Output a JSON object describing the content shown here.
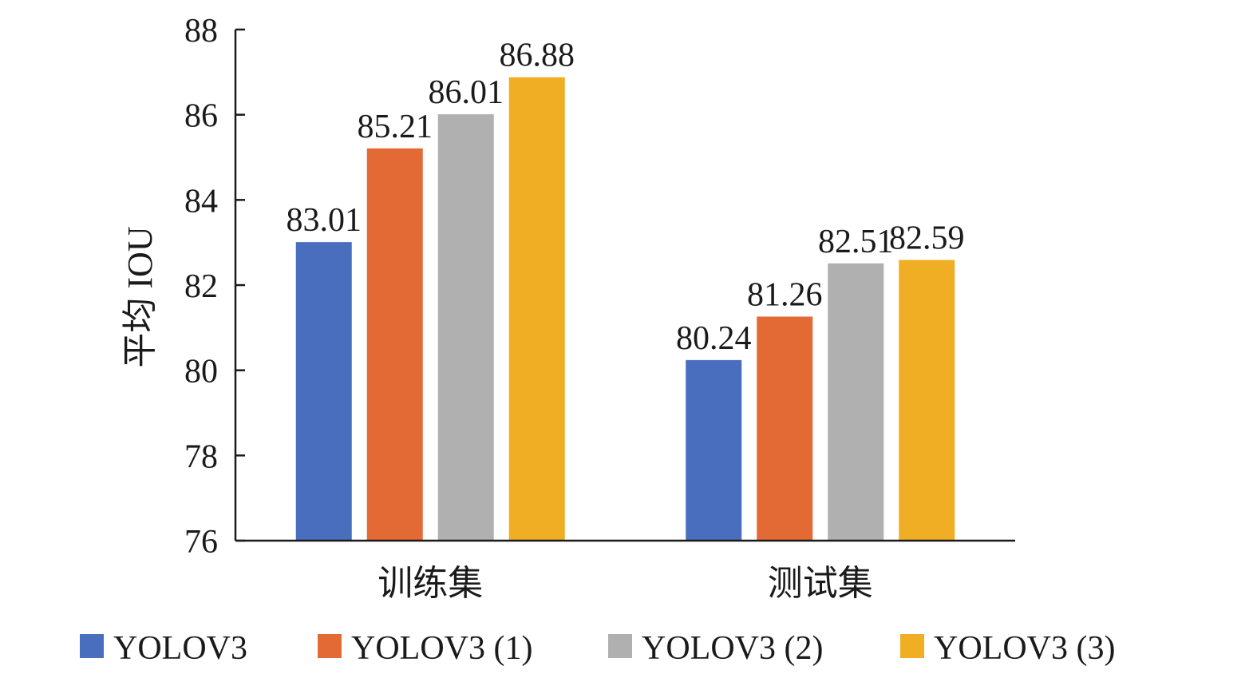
{
  "chart_data": {
    "type": "bar",
    "title": "",
    "xlabel": "",
    "ylabel": "平均 IOU",
    "ylim": [
      76,
      88
    ],
    "yticks": [
      76,
      78,
      80,
      82,
      84,
      86,
      88
    ],
    "categories": [
      "训练集",
      "测试集"
    ],
    "series": [
      {
        "name": "YOLOV3",
        "color": "#4a6ebe",
        "values": [
          83.01,
          80.24
        ],
        "labels": [
          "83.01",
          "80.24"
        ]
      },
      {
        "name": "YOLOV3 (1)",
        "color": "#e36a35",
        "values": [
          85.21,
          81.26
        ],
        "labels": [
          "85.21",
          "81.26"
        ]
      },
      {
        "name": "YOLOV3 (2)",
        "color": "#b0b0b0",
        "values": [
          86.01,
          82.51
        ],
        "labels": [
          "86.01",
          "82.51"
        ]
      },
      {
        "name": "YOLOV3 (3)",
        "color": "#f0ae24",
        "values": [
          86.88,
          82.59
        ],
        "labels": [
          "86.88",
          "82.59"
        ]
      }
    ],
    "grid": false,
    "legend_position": "bottom"
  }
}
